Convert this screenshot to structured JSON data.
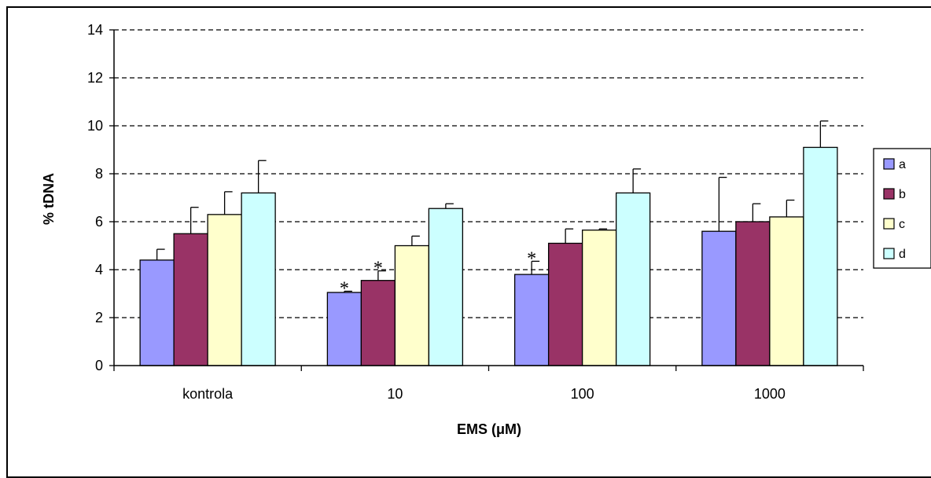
{
  "chart_data": {
    "type": "bar",
    "categories": [
      "kontrola",
      "10",
      "100",
      "1000"
    ],
    "series": [
      {
        "name": "a",
        "color": "#9999ff",
        "values": [
          4.4,
          3.05,
          3.8,
          5.6
        ],
        "errors": [
          0.45,
          0.05,
          0.55,
          2.25
        ]
      },
      {
        "name": "b",
        "color": "#993366",
        "values": [
          5.5,
          3.55,
          5.1,
          6.0
        ],
        "errors": [
          1.1,
          0.4,
          0.6,
          0.75
        ]
      },
      {
        "name": "c",
        "color": "#ffffcc",
        "values": [
          6.3,
          5.0,
          5.65,
          6.2
        ],
        "errors": [
          0.95,
          0.4,
          0.05,
          0.7
        ]
      },
      {
        "name": "d",
        "color": "#ccffff",
        "values": [
          7.2,
          6.55,
          7.2,
          9.1
        ],
        "errors": [
          1.35,
          0.2,
          1.0,
          1.1
        ]
      }
    ],
    "significance_marks": [
      {
        "category": "10",
        "series": "a",
        "label": "*"
      },
      {
        "category": "10",
        "series": "b",
        "label": "*"
      },
      {
        "category": "100",
        "series": "a",
        "label": "*"
      }
    ],
    "xlabel": "EMS (μM)",
    "ylabel": "% tDNA",
    "ylim": [
      0,
      14
    ],
    "yticks": [
      "0",
      "2",
      "4",
      "6",
      "8",
      "10",
      "12",
      "14"
    ],
    "grid": "horizontal dashed",
    "legend_position": "right"
  }
}
